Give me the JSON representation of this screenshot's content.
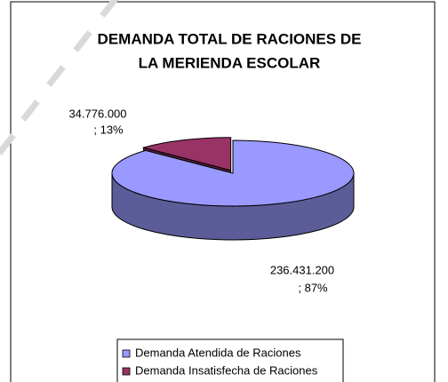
{
  "chart_data": {
    "type": "pie",
    "title": [
      "DEMANDA TOTAL DE RACIONES DE",
      "LA MERIENDA ESCOLAR"
    ],
    "categories": [
      "Demanda Atendida de Raciones",
      "Demanda Insatisfecha de Raciones"
    ],
    "values": [
      236431200,
      34776000
    ],
    "value_labels": [
      [
        "236.431.200",
        "; 87%"
      ],
      [
        "34.776.000",
        "; 13%"
      ]
    ],
    "colors": [
      "#9999ff",
      "#993366"
    ],
    "legend": "bottom"
  }
}
